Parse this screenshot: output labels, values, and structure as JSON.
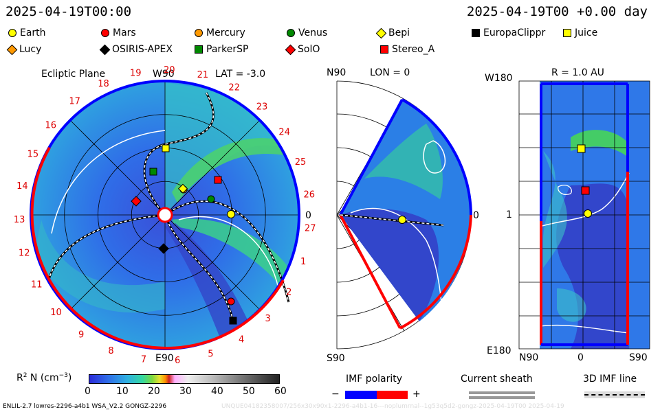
{
  "header": {
    "date_left": "2025-04-19T00:00",
    "date_right": "2025-04-19T00 +0.00 day"
  },
  "legend": [
    {
      "label": "Earth",
      "color": "#ffff00",
      "shape": "circle"
    },
    {
      "label": "Mars",
      "color": "#ff0000",
      "shape": "circle"
    },
    {
      "label": "Mercury",
      "color": "#ff9900",
      "shape": "circle"
    },
    {
      "label": "Venus",
      "color": "#008800",
      "shape": "circle"
    },
    {
      "label": "Bepi",
      "color": "#ffff00",
      "shape": "diamond"
    },
    {
      "label": "EuropaClippr",
      "color": "#000000",
      "shape": "square"
    },
    {
      "label": "Juice",
      "color": "#ffff00",
      "shape": "square"
    },
    {
      "label": "Lucy",
      "color": "#ff9900",
      "shape": "diamond"
    },
    {
      "label": "OSIRIS-APEX",
      "color": "#000000",
      "shape": "diamond"
    },
    {
      "label": "ParkerSP",
      "color": "#008800",
      "shape": "square"
    },
    {
      "label": "SolO",
      "color": "#ff0000",
      "shape": "diamond"
    },
    {
      "label": "Stereo_A",
      "color": "#ff0000",
      "shape": "square"
    }
  ],
  "panel_ecliptic": {
    "title": "Ecliptic Plane",
    "lat": "LAT = -3.0",
    "top": "W90",
    "bottom": "E90",
    "right": "0",
    "carrington": [
      "1",
      "2",
      "3",
      "4",
      "5",
      "6",
      "7",
      "8",
      "9",
      "10",
      "11",
      "12",
      "13",
      "14",
      "15",
      "16",
      "17",
      "18",
      "19",
      "20",
      "21",
      "22",
      "23",
      "24",
      "25",
      "26",
      "27"
    ]
  },
  "panel_meridional": {
    "lon": "LON = 0",
    "top": "N90",
    "bottom": "S90",
    "right": "0"
  },
  "panel_map": {
    "title": "R = 1.0 AU",
    "top_left": "W180",
    "mid_left": "1",
    "bottom_left": "E180",
    "x_left": "N90",
    "x_mid": "0",
    "x_right": "S90"
  },
  "colorbar": {
    "label": "R",
    "label_rest": " N (cm",
    "ticks": [
      "0",
      "10",
      "20",
      "30",
      "40",
      "50",
      "60"
    ]
  },
  "imf": {
    "title": "IMF polarity",
    "minus": "−",
    "plus": "+",
    "neg_color": "#0000ff",
    "pos_color": "#ff0000"
  },
  "sheath": {
    "title": "Current sheath"
  },
  "imf3d": {
    "title": "3D IMF line"
  },
  "footer": {
    "left": "ENLIL-2.7 lowres-2296-a4b1 WSA_V2.2 GONGZ-2296",
    "right": "UNQUE04182358007/256x30x90x1-2296-a4b1-16---noplumrnal--1g53q5d2-gongz-2025-04-19T00   2025-04-19"
  }
}
